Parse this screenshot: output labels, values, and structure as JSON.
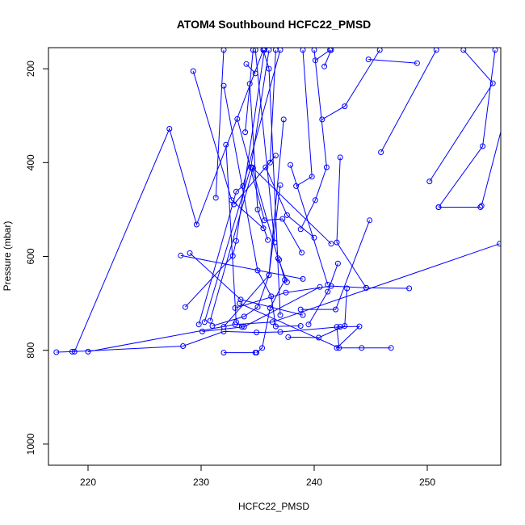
{
  "chart_data": {
    "type": "line",
    "title": "ATOM4 Southbound HCFC22_PMSD",
    "xlabel": "HCFC22_PMSD",
    "ylabel": "Pressure (mbar)",
    "xlim": [
      216.5,
      256.5
    ],
    "ylim": [
      1045,
      155
    ],
    "y_inverted": true,
    "xticks": [
      220,
      230,
      240,
      250
    ],
    "yticks": [
      200,
      400,
      600,
      800,
      1000
    ],
    "grid": false,
    "legend": "none",
    "series_color": "#0000ff",
    "series": [
      {
        "points": [
          [
            217.2,
            804
          ],
          [
            218.6,
            803
          ],
          [
            228.4,
            791
          ],
          [
            232.0,
            760
          ],
          [
            234.9,
            762
          ],
          [
            237.0,
            761
          ],
          [
            242.3,
            750
          ],
          [
            244.0,
            749
          ],
          [
            242.0,
            795
          ],
          [
            244.2,
            795
          ],
          [
            246.8,
            795
          ]
        ]
      },
      {
        "points": [
          [
            218.8,
            803
          ],
          [
            227.2,
            328
          ],
          [
            229.6,
            532
          ],
          [
            235.5,
            160
          ]
        ]
      },
      {
        "points": [
          [
            220.0,
            803
          ],
          [
            233.0,
            745
          ],
          [
            236.3,
            740
          ],
          [
            256.4,
            573
          ]
        ]
      },
      {
        "points": [
          [
            232.0,
            805
          ],
          [
            234.8,
            805
          ]
        ]
      },
      {
        "points": [
          [
            234.9,
            805
          ],
          [
            235.4,
            795
          ],
          [
            236.1,
            710
          ],
          [
            237.4,
            650
          ],
          [
            236.9,
            607
          ]
        ]
      },
      {
        "points": [
          [
            228.6,
            708
          ],
          [
            232.8,
            599
          ],
          [
            233.1,
            567
          ],
          [
            235.6,
            160
          ]
        ]
      },
      {
        "points": [
          [
            228.2,
            598
          ],
          [
            239.0,
            648
          ]
        ]
      },
      {
        "points": [
          [
            229.0,
            593
          ],
          [
            233.5,
            692
          ],
          [
            239.0,
            725
          ]
        ]
      },
      {
        "points": [
          [
            229.3,
            205
          ],
          [
            232.7,
            480
          ],
          [
            235.5,
            540
          ]
        ]
      },
      {
        "points": [
          [
            229.8,
            745
          ],
          [
            233.1,
            462
          ],
          [
            233.7,
            450
          ],
          [
            237.0,
            160
          ]
        ]
      },
      {
        "points": [
          [
            230.3,
            740
          ],
          [
            234.4,
            410
          ],
          [
            236.0,
            160
          ]
        ]
      },
      {
        "points": [
          [
            230.8,
            737
          ],
          [
            234.6,
            412
          ],
          [
            241.5,
            573
          ]
        ]
      },
      {
        "points": [
          [
            231.3,
            475
          ],
          [
            232.0,
            160
          ]
        ]
      },
      {
        "points": [
          [
            232.0,
            236
          ],
          [
            235.0,
            630
          ],
          [
            236.2,
            685
          ],
          [
            236.6,
            749
          ],
          [
            238.8,
            748
          ]
        ]
      },
      {
        "points": [
          [
            232.2,
            362
          ],
          [
            233.1,
            740
          ],
          [
            233.6,
            750
          ]
        ]
      },
      {
        "points": [
          [
            232.9,
            489
          ],
          [
            236.6,
            385
          ]
        ]
      },
      {
        "points": [
          [
            233.2,
            307
          ],
          [
            235.6,
            523
          ],
          [
            237.2,
            520
          ],
          [
            238.9,
            592
          ]
        ]
      },
      {
        "points": [
          [
            234.0,
            190
          ],
          [
            234.8,
            210
          ]
        ]
      },
      {
        "points": [
          [
            234.3,
            232
          ],
          [
            235.0,
            500
          ],
          [
            235.9,
            565
          ]
        ]
      },
      {
        "points": [
          [
            233.9,
            335
          ],
          [
            234.6,
            160
          ]
        ]
      },
      {
        "points": [
          [
            234.5,
            410
          ],
          [
            236.8,
            604
          ],
          [
            237.6,
            655
          ]
        ]
      },
      {
        "points": [
          [
            230.1,
            760
          ],
          [
            233.8,
            750
          ],
          [
            240.5,
            665
          ]
        ]
      },
      {
        "points": [
          [
            231.0,
            748
          ],
          [
            233.8,
            728
          ],
          [
            235.0,
            708
          ],
          [
            236.0,
            640
          ],
          [
            237.0,
            448
          ]
        ]
      },
      {
        "points": [
          [
            233.4,
            700
          ],
          [
            242.2,
            795
          ],
          [
            242.0,
            750
          ]
        ]
      },
      {
        "points": [
          [
            233.0,
            710
          ],
          [
            237.5,
            677
          ],
          [
            241.5,
            663
          ],
          [
            244.6,
            667
          ],
          [
            248.4,
            668
          ]
        ]
      },
      {
        "points": [
          [
            235.7,
            410
          ],
          [
            237.6,
            512
          ],
          [
            240.0,
            560
          ]
        ]
      },
      {
        "points": [
          [
            236.1,
            400
          ],
          [
            236.6,
            160
          ]
        ]
      },
      {
        "points": [
          [
            236.5,
            570
          ],
          [
            234.8,
            160
          ]
        ]
      },
      {
        "points": [
          [
            237.7,
            772
          ],
          [
            240.4,
            773
          ],
          [
            242.7,
            748
          ],
          [
            242.9,
            668
          ]
        ]
      },
      {
        "points": [
          [
            237.0,
            725
          ],
          [
            236.0,
            200
          ],
          [
            235.5,
            160
          ]
        ]
      },
      {
        "points": [
          [
            237.3,
            308
          ],
          [
            236.0,
            640
          ],
          [
            232.0,
            750
          ]
        ]
      },
      {
        "points": [
          [
            237.9,
            405
          ],
          [
            241.2,
            660
          ]
        ]
      },
      {
        "points": [
          [
            238.4,
            450
          ],
          [
            239.8,
            430
          ],
          [
            239.0,
            160
          ]
        ]
      },
      {
        "points": [
          [
            238.8,
            542
          ],
          [
            240.1,
            480
          ],
          [
            241.1,
            410
          ],
          [
            240.0,
            160
          ]
        ]
      },
      {
        "points": [
          [
            238.8,
            713
          ],
          [
            241.9,
            713
          ],
          [
            244.9,
            523
          ]
        ]
      },
      {
        "points": [
          [
            239.5,
            745
          ],
          [
            241.2,
            675
          ],
          [
            242.1,
            615
          ]
        ]
      },
      {
        "points": [
          [
            240.1,
            182
          ],
          [
            241.4,
            160
          ]
        ]
      },
      {
        "points": [
          [
            240.7,
            308
          ],
          [
            242.7,
            280
          ],
          [
            245.8,
            160
          ]
        ]
      },
      {
        "points": [
          [
            240.9,
            195
          ],
          [
            241.5,
            160
          ]
        ]
      },
      {
        "points": [
          [
            242.3,
            389
          ],
          [
            242.0,
            570
          ],
          [
            244.6,
            667
          ]
        ]
      },
      {
        "points": [
          [
            244.8,
            180
          ],
          [
            249.1,
            188
          ]
        ]
      },
      {
        "points": [
          [
            245.9,
            378
          ],
          [
            250.8,
            160
          ]
        ]
      },
      {
        "points": [
          [
            250.2,
            440
          ],
          [
            255.8,
            231
          ],
          [
            253.2,
            160
          ]
        ]
      },
      {
        "points": [
          [
            251.0,
            495
          ],
          [
            254.7,
            495
          ]
        ]
      },
      {
        "points": [
          [
            251.0,
            495
          ],
          [
            254.9,
            365
          ],
          [
            256.0,
            160
          ]
        ]
      },
      {
        "points": [
          [
            254.8,
            492
          ],
          [
            257.0,
            288
          ],
          [
            256.8,
            160
          ]
        ]
      }
    ]
  }
}
